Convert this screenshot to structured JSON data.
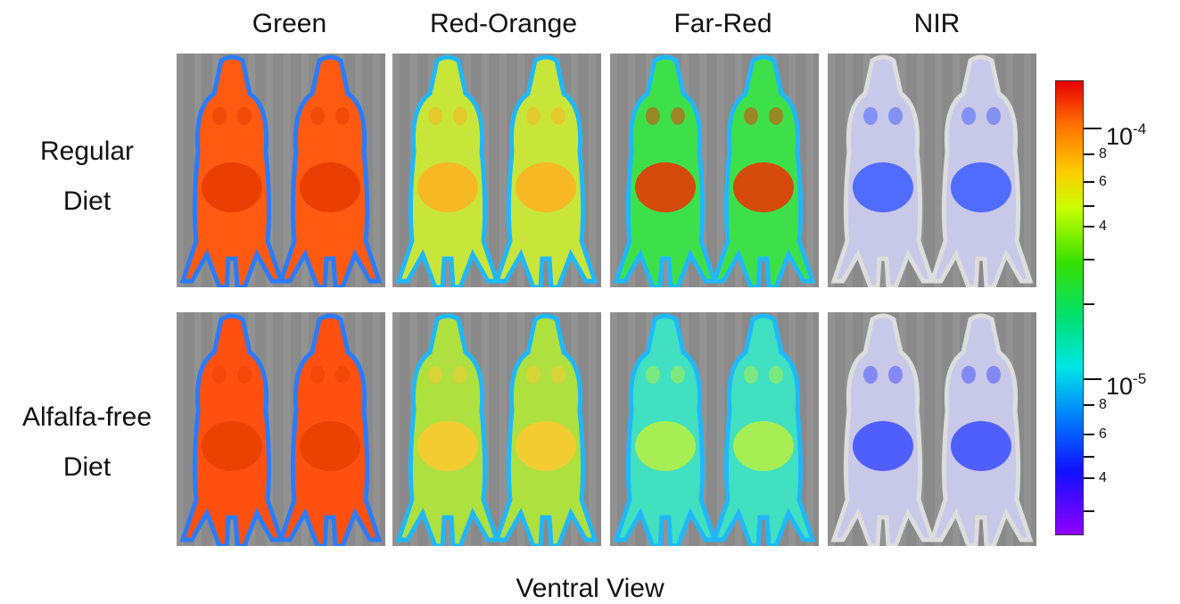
{
  "columns": [
    "Green",
    "Red-Orange",
    "Far-Red",
    "NIR"
  ],
  "rows": [
    {
      "line1": "Regular",
      "line2": "Diet"
    },
    {
      "line1": "Alfalfa-free",
      "line2": "Diet"
    }
  ],
  "footer": "Ventral View",
  "colorbar": {
    "major": [
      {
        "base": "10",
        "exp": "-4"
      },
      {
        "base": "10",
        "exp": "-5"
      }
    ],
    "minor": [
      "8",
      "6",
      "4",
      "8",
      "6",
      "4"
    ]
  },
  "panels": [
    {
      "row": 0,
      "col": 0,
      "body": "#ff5a10",
      "belly": "#e83a00",
      "edge": "#2b7bff"
    },
    {
      "row": 0,
      "col": 1,
      "body": "#c8e63a",
      "belly": "#ffb020",
      "edge": "#1fb8ff"
    },
    {
      "row": 0,
      "col": 2,
      "body": "#3ee04a",
      "belly": "#f03000",
      "edge": "#1fb8ff"
    },
    {
      "row": 0,
      "col": 3,
      "body": "#c8c8e8",
      "belly": "#3a5cff",
      "edge": "#dddddd"
    },
    {
      "row": 1,
      "col": 0,
      "body": "#ff5010",
      "belly": "#e84000",
      "edge": "#2b7bff"
    },
    {
      "row": 1,
      "col": 1,
      "body": "#aee040",
      "belly": "#ffc830",
      "edge": "#1fb8ff"
    },
    {
      "row": 1,
      "col": 2,
      "body": "#40e0c0",
      "belly": "#b8f040",
      "edge": "#1fb8ff"
    },
    {
      "row": 1,
      "col": 3,
      "body": "#c8c8e8",
      "belly": "#3a4cff",
      "edge": "#dddddd"
    }
  ]
}
